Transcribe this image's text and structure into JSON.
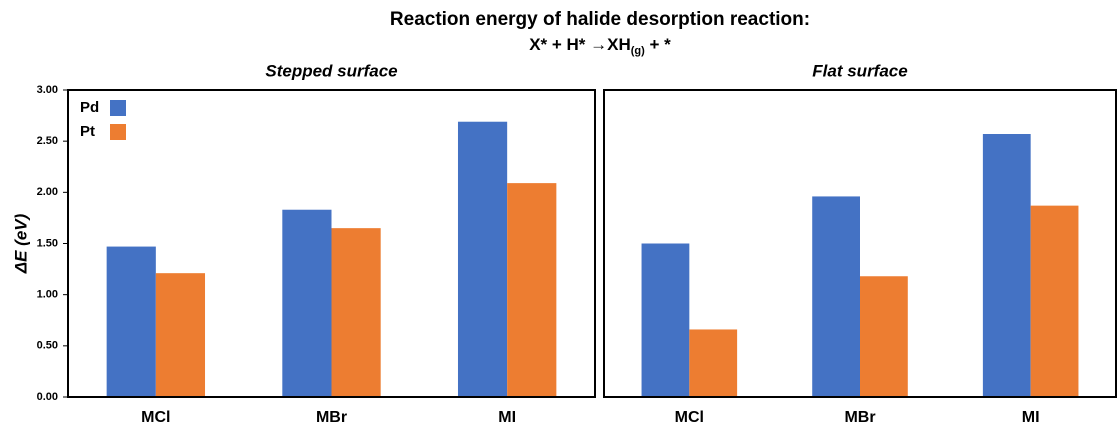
{
  "header": {
    "title": "Reaction energy of halide desorption reaction:",
    "equation": [
      "X* + H* →XH",
      "(g)",
      " + *"
    ]
  },
  "chart_data": [
    {
      "type": "bar",
      "title": "Stepped surface",
      "ylabel": "ΔE (eV)",
      "categories": [
        "MCl",
        "MBr",
        "MI"
      ],
      "series": [
        {
          "name": "Pd",
          "color": "#4472c4",
          "values": [
            1.47,
            1.83,
            2.69
          ]
        },
        {
          "name": "Pt",
          "color": "#ed7d31",
          "values": [
            1.21,
            1.65,
            2.09
          ]
        }
      ],
      "ylim": [
        0,
        3
      ],
      "yticks": [
        {
          "value": 0,
          "label": "0.00"
        },
        {
          "value": 0.5,
          "label": "0.50"
        },
        {
          "value": 1,
          "label": "1.00"
        },
        {
          "value": 1.5,
          "label": "1.50"
        },
        {
          "value": 2,
          "label": "2.00"
        },
        {
          "value": 2.5,
          "label": "2.50"
        },
        {
          "value": 3,
          "label": "3.00"
        }
      ],
      "legend": "top-left"
    },
    {
      "type": "bar",
      "title": "Flat surface",
      "categories": [
        "MCl",
        "MBr",
        "MI"
      ],
      "series": [
        {
          "color": "#4472c4",
          "values": [
            1.5,
            1.96,
            2.57
          ]
        },
        {
          "color": "#ed7d31",
          "values": [
            0.66,
            1.18,
            1.87
          ]
        }
      ],
      "ylim": [
        0,
        3
      ]
    }
  ]
}
